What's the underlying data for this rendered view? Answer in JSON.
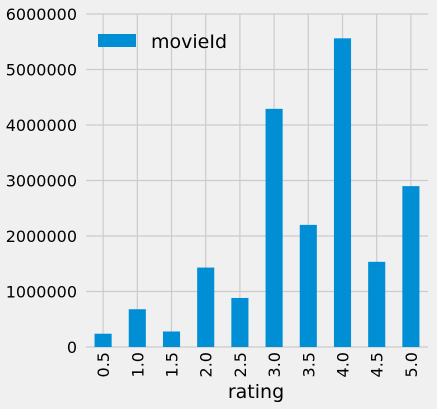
{
  "chart_data": {
    "type": "bar",
    "categories": [
      "0.5",
      "1.0",
      "1.5",
      "2.0",
      "2.5",
      "3.0",
      "3.5",
      "4.0",
      "4.5",
      "5.0"
    ],
    "series": [
      {
        "name": "movieId",
        "values": [
          239125,
          680732,
          279252,
          1430997,
          883398,
          4291193,
          2200156,
          5561926,
          1534824,
          2898660
        ]
      }
    ],
    "xlabel": "rating",
    "ylabel": "",
    "ylim": [
      0,
      6000000
    ],
    "yticks": [
      0,
      1000000,
      2000000,
      3000000,
      4000000,
      5000000,
      6000000
    ],
    "grid": true,
    "legend_position": "top-left",
    "colors": {
      "bar": "#008fd5",
      "background": "#f0f0f0",
      "grid": "#cbcbcb"
    }
  }
}
